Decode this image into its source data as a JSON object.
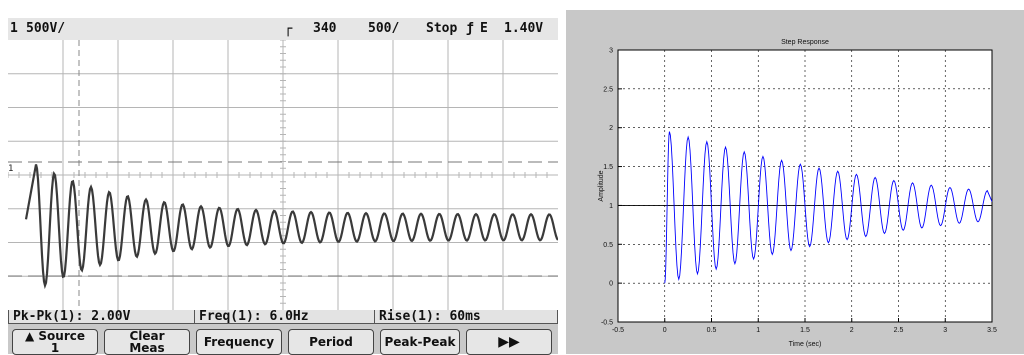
{
  "scope": {
    "status": {
      "channel": "1",
      "volts_div": "500",
      "volts_unit": "V/",
      "time_pos": "340",
      "time_div": "500",
      "time_unit": "/",
      "run_state": "Stop",
      "trigger_source": "E",
      "trigger_level": "1.40V"
    },
    "ground_marker": "1",
    "measurements": [
      {
        "label": "Pk-Pk(1): 2.00V"
      },
      {
        "label": "Freq(1): 6.0Hz"
      },
      {
        "label": "Rise(1): 60ms"
      }
    ],
    "softkeys": [
      {
        "line1": "Source",
        "line2": "1",
        "arrow": "▲"
      },
      {
        "line1": "Clear",
        "line2": "Meas"
      },
      {
        "line1": "Frequency",
        "line2": ""
      },
      {
        "line1": "Period",
        "line2": ""
      },
      {
        "line1": "Peak-Peak",
        "line2": ""
      },
      {
        "line1": "▶▶",
        "line2": ""
      }
    ],
    "trace": {
      "freq_per_division": 3,
      "decay": 0.6,
      "settle_level_div": 5.55,
      "amplitude_div": 2.7
    },
    "colors": {
      "trace": "#3a3a3a",
      "grid": "#b5b5b5",
      "background": "#ffffff"
    }
  },
  "chart_data": {
    "type": "line",
    "title": "Step Response",
    "xlabel": "Time (sec)",
    "ylabel": "Amplitude",
    "xlim": [
      -0.5,
      3.5
    ],
    "ylim": [
      -0.5,
      3
    ],
    "xticks": [
      "-0.5",
      "0",
      "0.5",
      "1",
      "1.5",
      "2",
      "2.5",
      "3",
      "3.5"
    ],
    "yticks": [
      "-0.5",
      "0",
      "0.5",
      "1",
      "1.5",
      "2",
      "2.5",
      "3"
    ],
    "grid": true,
    "series": [
      {
        "color": "#0000ff",
        "peaks": [
          [
            0.05,
            1.95
          ],
          [
            0.25,
            1.88
          ],
          [
            0.45,
            1.82
          ],
          [
            0.65,
            1.75
          ],
          [
            0.85,
            1.69
          ],
          [
            1.05,
            1.63
          ],
          [
            1.25,
            1.58
          ],
          [
            1.45,
            1.53
          ],
          [
            1.65,
            1.48
          ],
          [
            1.85,
            1.44
          ],
          [
            2.05,
            1.4
          ],
          [
            2.25,
            1.36
          ],
          [
            2.45,
            1.32
          ],
          [
            2.65,
            1.29
          ],
          [
            2.85,
            1.26
          ],
          [
            3.05,
            1.23
          ],
          [
            3.25,
            1.21
          ],
          [
            3.45,
            1.19
          ]
        ],
        "troughs": [
          [
            0.15,
            0.05
          ],
          [
            0.35,
            0.12
          ],
          [
            0.55,
            0.18
          ],
          [
            0.75,
            0.25
          ],
          [
            0.95,
            0.31
          ],
          [
            1.15,
            0.37
          ],
          [
            1.35,
            0.42
          ],
          [
            1.55,
            0.47
          ],
          [
            1.75,
            0.52
          ],
          [
            1.95,
            0.56
          ],
          [
            2.15,
            0.6
          ],
          [
            2.35,
            0.64
          ],
          [
            2.55,
            0.68
          ],
          [
            2.75,
            0.71
          ],
          [
            2.95,
            0.74
          ],
          [
            3.15,
            0.77
          ],
          [
            3.35,
            0.79
          ]
        ],
        "final_value": 1.0,
        "frequency_hz": 5.0
      }
    ]
  }
}
